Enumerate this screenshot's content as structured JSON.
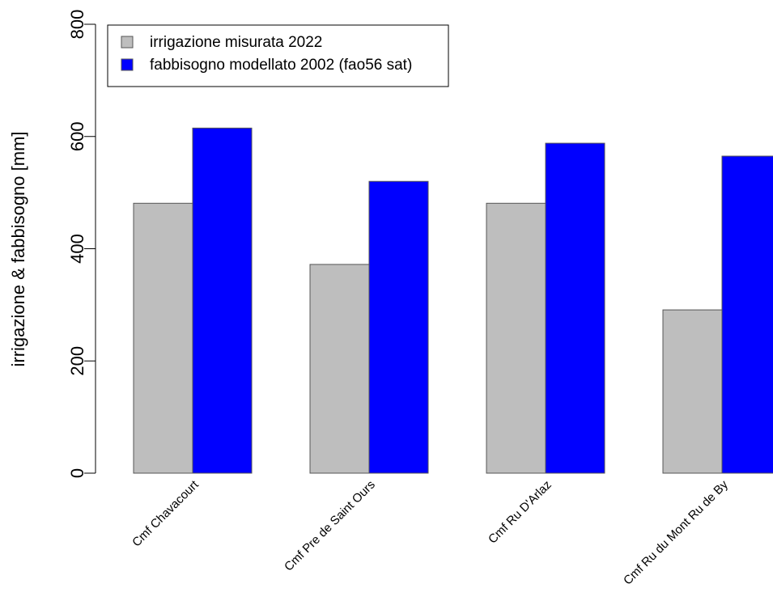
{
  "chart_data": {
    "type": "bar",
    "title": "",
    "xlabel": "",
    "ylabel": "irrigazione & fabbisogno [mm]",
    "ylim": [
      0,
      800
    ],
    "yticks": [
      0,
      200,
      400,
      600,
      800
    ],
    "categories": [
      "Cmf Chavacourt",
      "Cmf Pre de Saint Ours",
      "Cmf Ru D'Arlaz",
      "Cmf Ru du Mont Ru de By"
    ],
    "series": [
      {
        "name": "irrigazione misurata 2022",
        "color": "#bebebe",
        "values": [
          481,
          372,
          481,
          291
        ]
      },
      {
        "name": "fabbisogno modellato 2002 (fao56 sat)",
        "color": "#0000ff",
        "values": [
          615,
          520,
          588,
          565
        ]
      }
    ],
    "legend_position": "top-left",
    "grid": false
  }
}
